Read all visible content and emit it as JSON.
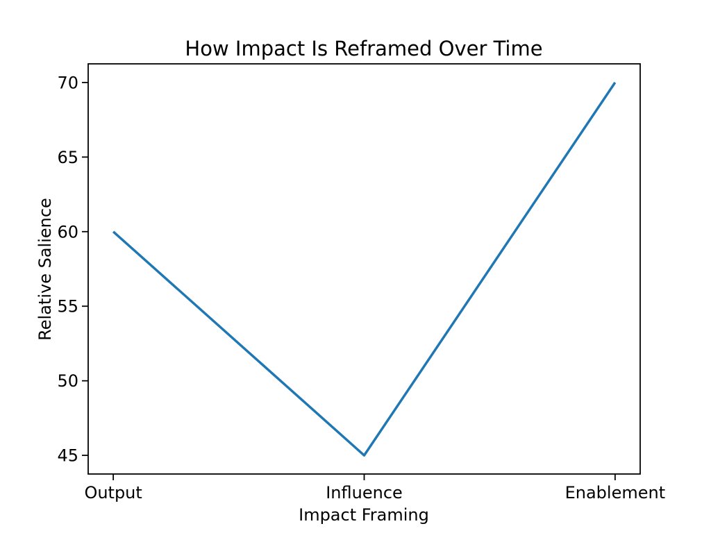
{
  "chart_data": {
    "type": "line",
    "title": "How Impact Is Reframed Over Time",
    "xlabel": "Impact Framing",
    "ylabel": "Relative Salience",
    "categories": [
      "Output",
      "Influence",
      "Enablement"
    ],
    "values": [
      60,
      45,
      70
    ],
    "yticks": [
      45,
      50,
      55,
      60,
      65,
      70
    ],
    "ylim": [
      43.75,
      71.25
    ],
    "xlim": [
      -0.1,
      2.1
    ],
    "line_color": "#1f77b4",
    "axis_color": "#000000",
    "background_color": "#ffffff",
    "grid": "off",
    "legend": "none"
  }
}
